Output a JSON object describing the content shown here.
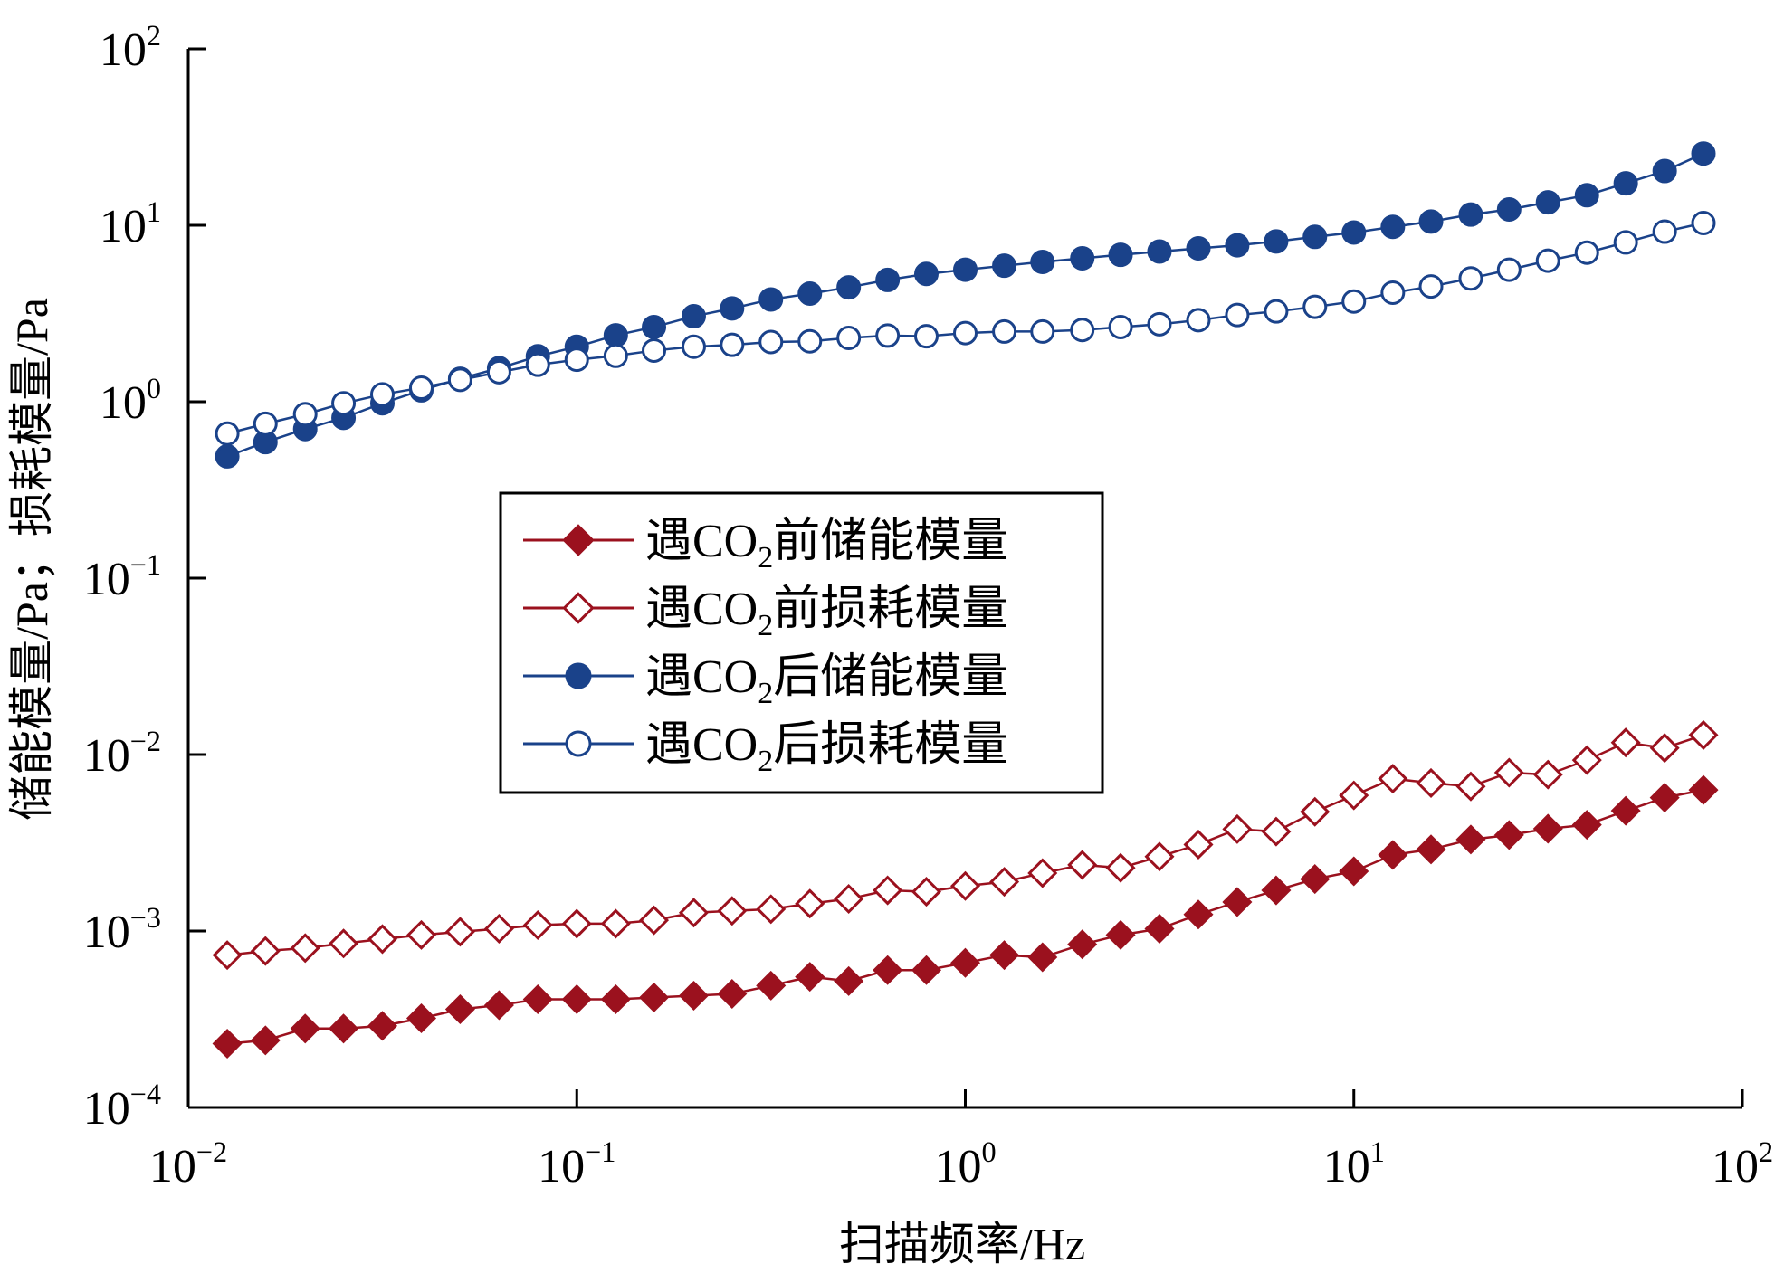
{
  "chart_data": {
    "type": "line",
    "xlabel": "扫描频率/Hz",
    "ylabel": "储能模量/Pa；损耗模量/Pa",
    "x_scale": "log",
    "y_scale": "log",
    "xlim": [
      0.01,
      100
    ],
    "ylim": [
      0.0001,
      100
    ],
    "grid": false,
    "legend_position": "center-left",
    "x_ticks": [
      {
        "base": "10",
        "exp": "−2"
      },
      {
        "base": "10",
        "exp": "−1"
      },
      {
        "base": "10",
        "exp": "0"
      },
      {
        "base": "10",
        "exp": "1"
      },
      {
        "base": "10",
        "exp": "2"
      }
    ],
    "y_ticks": [
      {
        "base": "10",
        "exp": "−4"
      },
      {
        "base": "10",
        "exp": "−3"
      },
      {
        "base": "10",
        "exp": "−2"
      },
      {
        "base": "10",
        "exp": "−1"
      },
      {
        "base": "10",
        "exp": "0"
      },
      {
        "base": "10",
        "exp": "1"
      },
      {
        "base": "10",
        "exp": "2"
      }
    ],
    "x": [
      0.0126,
      0.0158,
      0.02,
      0.0251,
      0.0316,
      0.0398,
      0.0501,
      0.0631,
      0.0794,
      0.1,
      0.126,
      0.158,
      0.2,
      0.251,
      0.316,
      0.398,
      0.501,
      0.631,
      0.794,
      1.0,
      1.26,
      1.58,
      2.0,
      2.51,
      3.16,
      3.98,
      5.01,
      6.31,
      7.94,
      10.0,
      12.6,
      15.8,
      20.0,
      25.1,
      31.6,
      39.8,
      50.1,
      63.1,
      79.4
    ],
    "series": [
      {
        "name_parts": [
          "遇CO",
          "2",
          "前储能模量"
        ],
        "color": "#9b111e",
        "marker": "diamond",
        "filled": true,
        "values": [
          0.00023,
          0.00024,
          0.00028,
          0.00028,
          0.00029,
          0.00032,
          0.00036,
          0.00038,
          0.00041,
          0.00041,
          0.00041,
          0.00042,
          0.00043,
          0.00044,
          0.00049,
          0.00055,
          0.00052,
          0.0006,
          0.0006,
          0.00066,
          0.00073,
          0.00071,
          0.00084,
          0.00095,
          0.00103,
          0.00124,
          0.00146,
          0.0017,
          0.00197,
          0.00218,
          0.0027,
          0.0029,
          0.0033,
          0.0035,
          0.0038,
          0.004,
          0.0048,
          0.0057,
          0.0063
        ]
      },
      {
        "name_parts": [
          "遇CO",
          "2",
          "前损耗模量"
        ],
        "color": "#9b111e",
        "marker": "diamond",
        "filled": false,
        "values": [
          0.00073,
          0.00077,
          0.0008,
          0.00085,
          0.0009,
          0.00095,
          0.00099,
          0.00103,
          0.00108,
          0.0011,
          0.0011,
          0.00115,
          0.00127,
          0.0013,
          0.00133,
          0.00143,
          0.00152,
          0.0017,
          0.00167,
          0.0018,
          0.0019,
          0.00213,
          0.00237,
          0.00228,
          0.00264,
          0.00309,
          0.00378,
          0.00366,
          0.00474,
          0.00587,
          0.0073,
          0.0069,
          0.0066,
          0.0079,
          0.0077,
          0.0093,
          0.0117,
          0.0109,
          0.0129
        ]
      },
      {
        "name_parts": [
          "遇CO",
          "2",
          "后储能模量"
        ],
        "color": "#1a428a",
        "marker": "circle",
        "filled": true,
        "values": [
          0.49,
          0.59,
          0.7,
          0.81,
          0.98,
          1.16,
          1.35,
          1.55,
          1.81,
          2.05,
          2.38,
          2.65,
          3.05,
          3.38,
          3.8,
          4.1,
          4.45,
          4.9,
          5.3,
          5.6,
          5.9,
          6.2,
          6.5,
          6.8,
          7.1,
          7.4,
          7.7,
          8.1,
          8.6,
          9.1,
          9.8,
          10.5,
          11.5,
          12.3,
          13.5,
          14.8,
          17.3,
          20.3,
          25.5
        ]
      },
      {
        "name_parts": [
          "遇CO",
          "2",
          "后损耗模量"
        ],
        "color": "#1a428a",
        "marker": "circle",
        "filled": false,
        "values": [
          0.66,
          0.75,
          0.85,
          0.98,
          1.1,
          1.2,
          1.33,
          1.47,
          1.62,
          1.73,
          1.82,
          1.95,
          2.05,
          2.1,
          2.18,
          2.2,
          2.3,
          2.37,
          2.35,
          2.45,
          2.5,
          2.5,
          2.55,
          2.65,
          2.75,
          2.9,
          3.1,
          3.25,
          3.45,
          3.7,
          4.15,
          4.5,
          5.0,
          5.6,
          6.3,
          7.0,
          8.0,
          9.2,
          10.3
        ]
      }
    ]
  }
}
